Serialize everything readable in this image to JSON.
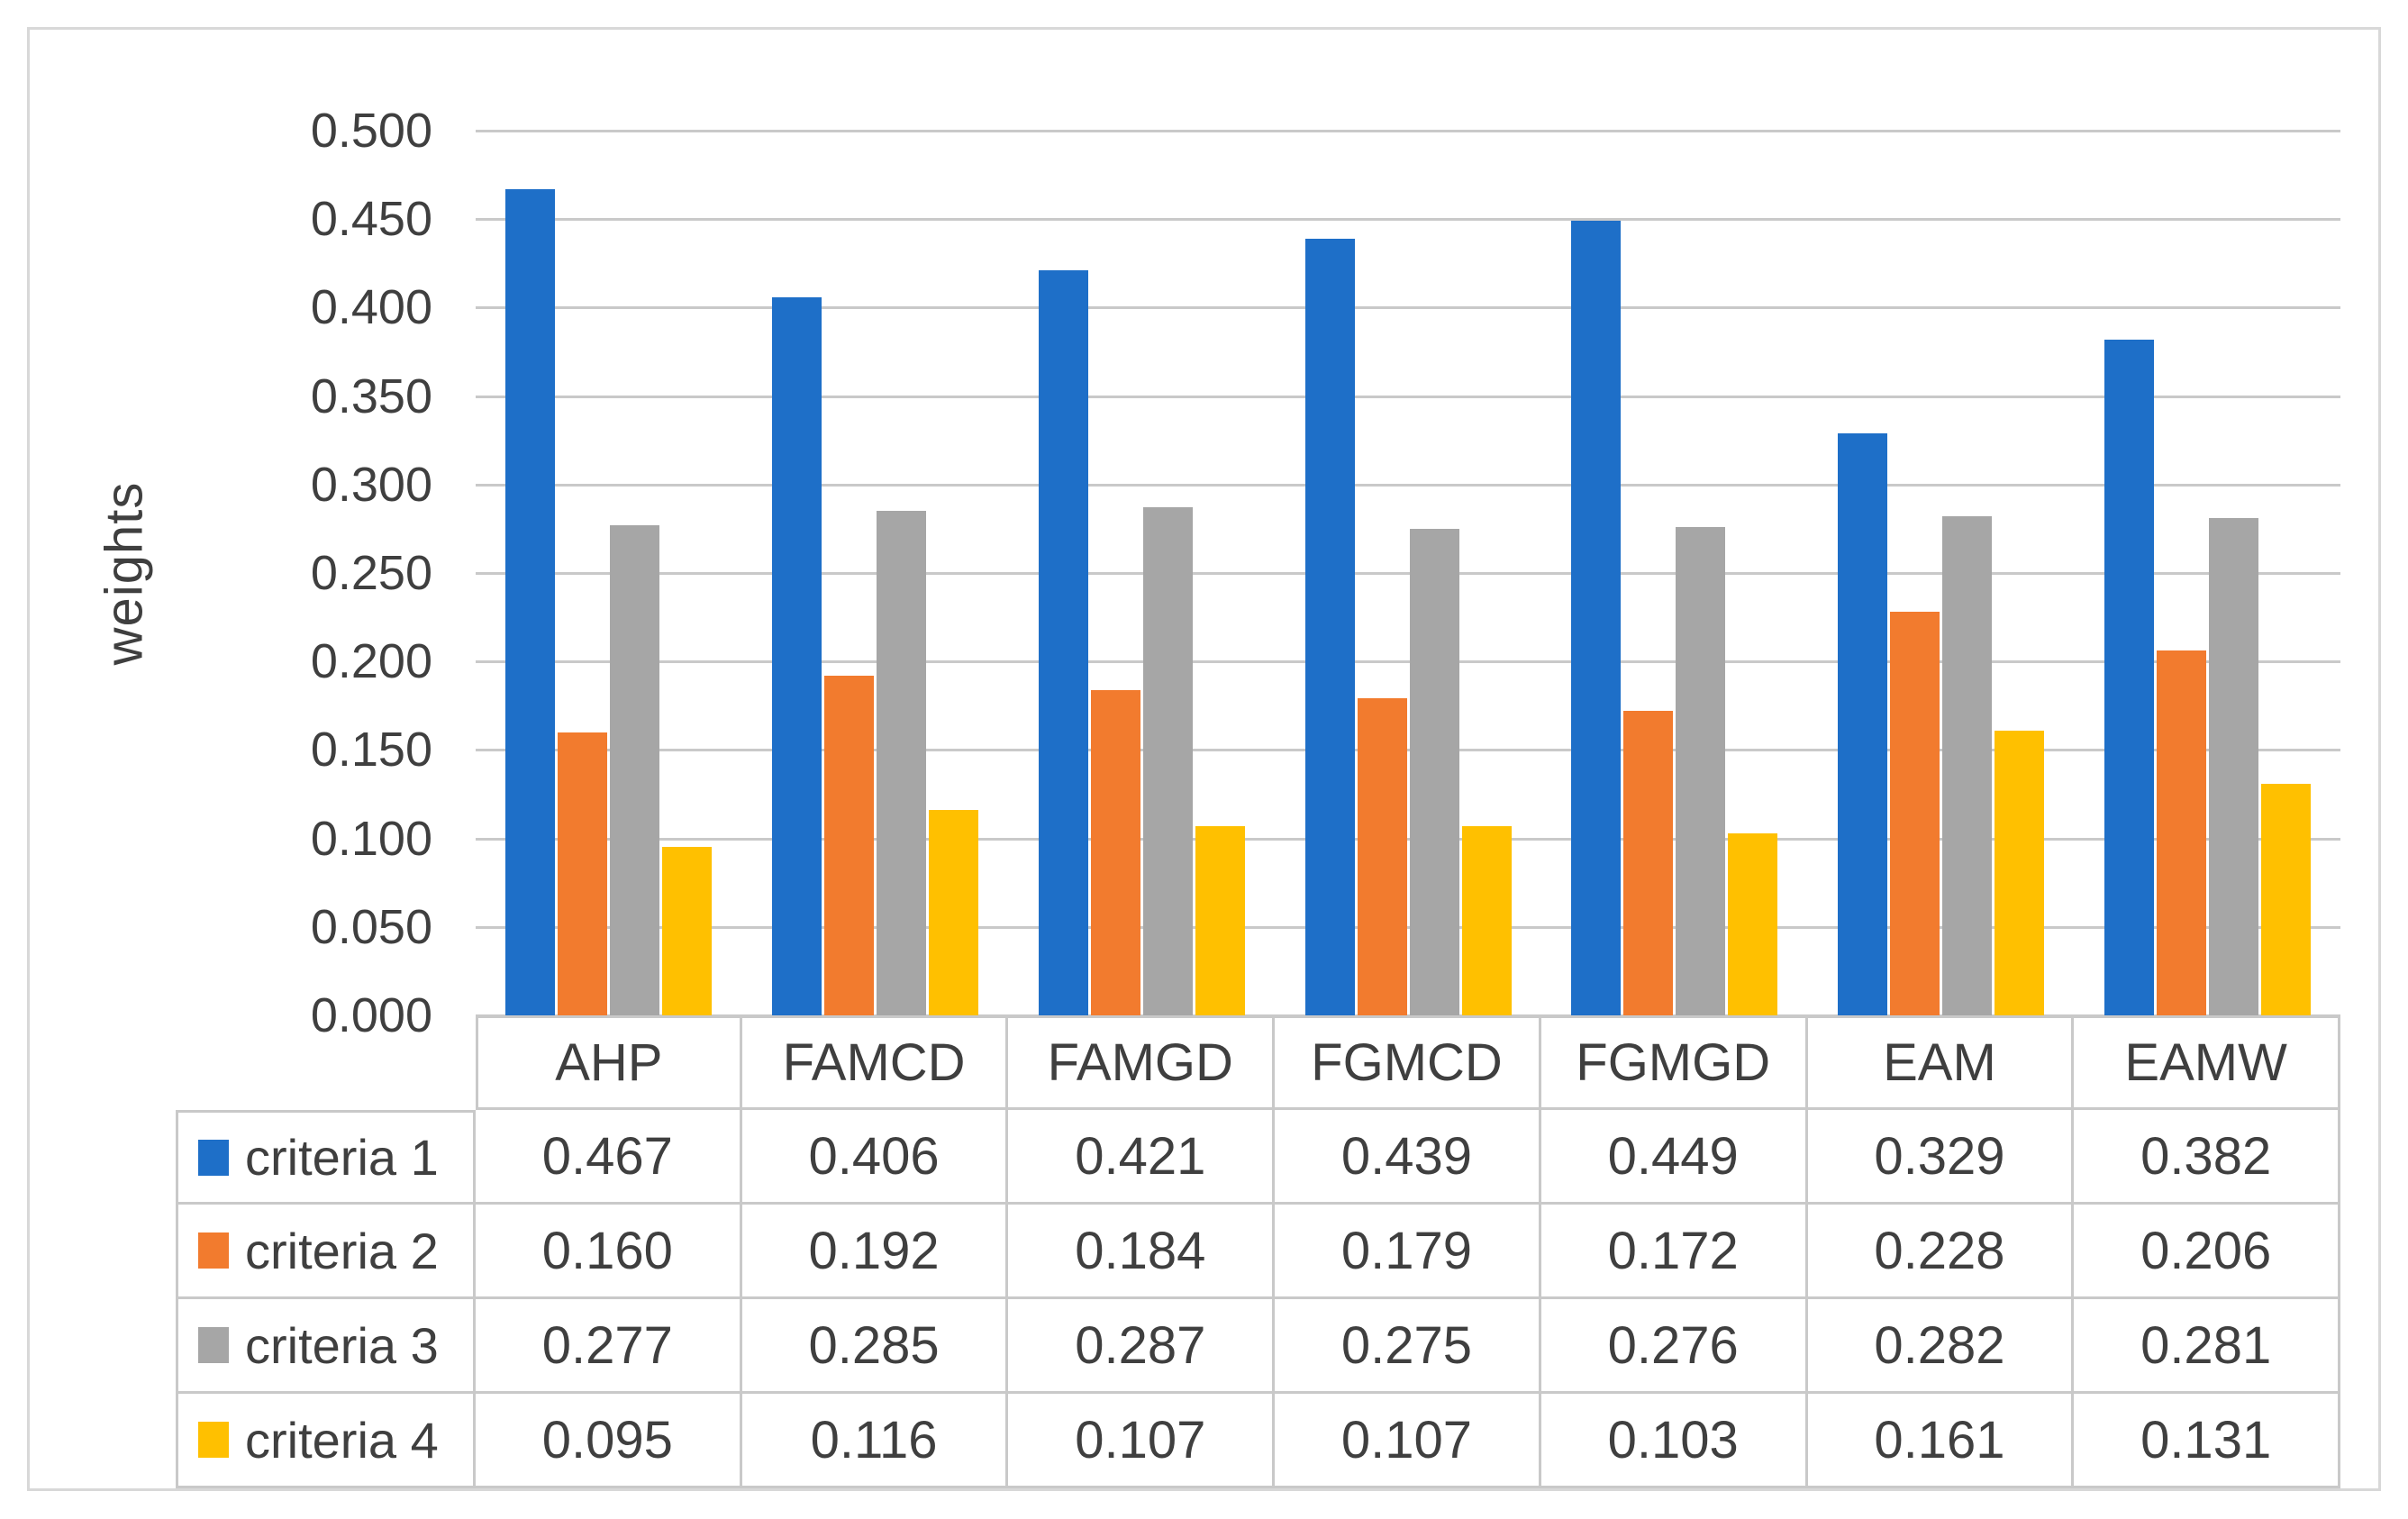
{
  "figure": {
    "background_color": "#ffffff",
    "frame_border_color": "#d8d8d8",
    "gridline_color": "#c9c9c9",
    "table_border_color": "#c9c9c9",
    "text_color": "#3f3f3f"
  },
  "chart_data": {
    "type": "bar",
    "title": "",
    "xlabel": "",
    "ylabel": "weights",
    "ylim": [
      0,
      0.5
    ],
    "ytick_step": 0.05,
    "yticks": [
      "0.500",
      "0.450",
      "0.400",
      "0.350",
      "0.300",
      "0.250",
      "0.200",
      "0.150",
      "0.100",
      "0.050",
      "0.000"
    ],
    "grid": true,
    "legend_position": "table-left",
    "data_table_shown": true,
    "value_format_decimals": 3,
    "categories": [
      "AHP",
      "FAMCD",
      "FAMGD",
      "FGMCD",
      "FGMGD",
      "EAM",
      "EAMW"
    ],
    "series": [
      {
        "name": "criteria 1",
        "color": "#1e6fc8",
        "values": [
          0.467,
          0.406,
          0.421,
          0.439,
          0.449,
          0.329,
          0.382
        ]
      },
      {
        "name": "criteria 2",
        "color": "#f27b2e",
        "values": [
          0.16,
          0.192,
          0.184,
          0.179,
          0.172,
          0.228,
          0.206
        ]
      },
      {
        "name": "criteria 3",
        "color": "#a6a6a6",
        "values": [
          0.277,
          0.285,
          0.287,
          0.275,
          0.276,
          0.282,
          0.281
        ]
      },
      {
        "name": "criteria 4",
        "color": "#ffc000",
        "values": [
          0.095,
          0.116,
          0.107,
          0.107,
          0.103,
          0.161,
          0.131
        ]
      }
    ]
  }
}
